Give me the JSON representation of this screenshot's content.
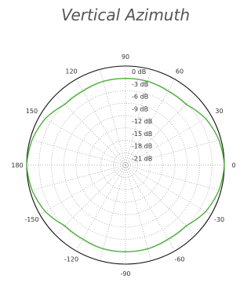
{
  "title": "Vertical Azimuth",
  "chart_data": {
    "type": "polar",
    "title": "Vertical Azimuth",
    "angular_ticks": [
      "90",
      "60",
      "30",
      "0",
      "-30",
      "-60",
      "-90",
      "-120",
      "-150",
      "180",
      "150",
      "120"
    ],
    "angular_tick_angles": [
      90,
      60,
      30,
      0,
      -30,
      -60,
      -90,
      -120,
      -150,
      180,
      150,
      120
    ],
    "radial_labels": [
      "0 dB",
      "-3 dB",
      "-6 dB",
      "-9 dB",
      "-12 dB",
      "-15 dB",
      "-18 dB",
      "-21 dB"
    ],
    "radial_range_db": [
      -24,
      0
    ],
    "grid": true,
    "grid_style": "dotted",
    "series": [
      {
        "color": "#4caf3a",
        "angles_deg": [
          0,
          15,
          30,
          45,
          60,
          75,
          90,
          105,
          120,
          135,
          150,
          165,
          180,
          195,
          210,
          225,
          240,
          255,
          270,
          285,
          300,
          315,
          330,
          345
        ],
        "values_db": [
          0,
          -0.5,
          -1.5,
          -3.2,
          -3.3,
          -3.0,
          -3.0,
          -3.0,
          -3.3,
          -3.2,
          -1.5,
          -0.5,
          0,
          -0.5,
          -1.5,
          -3.2,
          -3.3,
          -3.0,
          -3.0,
          -3.0,
          -3.3,
          -3.2,
          -1.5,
          -0.5
        ]
      }
    ]
  }
}
